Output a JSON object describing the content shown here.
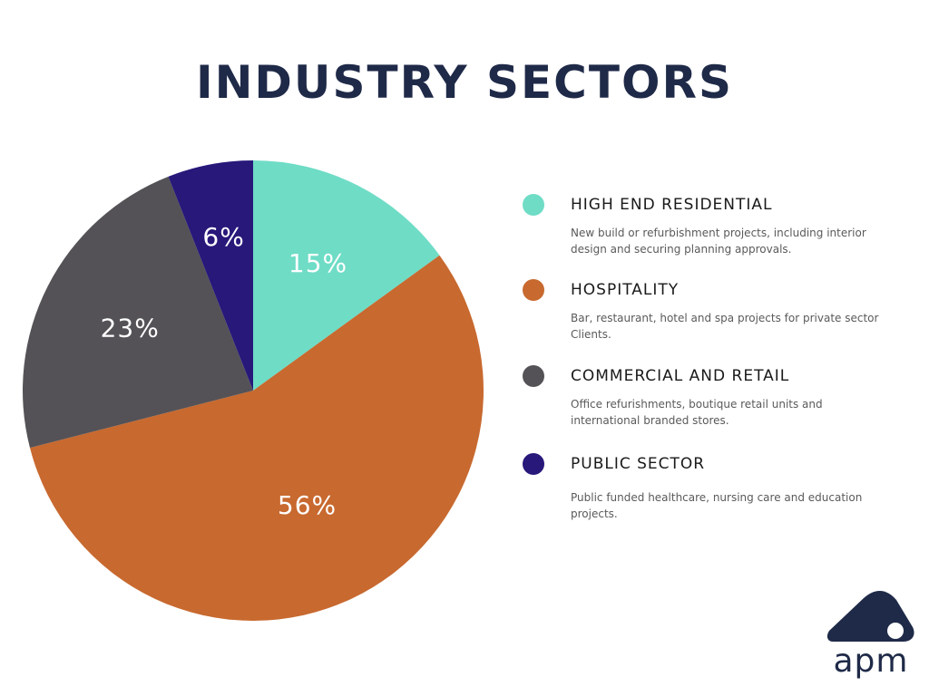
{
  "title": "INDUSTRY SECTORS",
  "chart_data": {
    "type": "pie",
    "title": "INDUSTRY SECTORS",
    "categories": [
      "HIGH END RESIDENTIAL",
      "HOSPITALITY",
      "COMMERCIAL AND RETAIL",
      "PUBLIC SECTOR"
    ],
    "values": [
      15,
      56,
      23,
      6
    ],
    "labels": [
      "15%",
      "56%",
      "23%",
      "6%"
    ],
    "colors": [
      "#6fdcc6",
      "#c8692f",
      "#545256",
      "#27187a"
    ],
    "legend_placement": "right"
  },
  "legend": [
    {
      "name": "HIGH END RESIDENTIAL",
      "desc": "New build or refurbishment projects, including interior design and securing planning approvals.",
      "color": "#6fdcc6"
    },
    {
      "name": "HOSPITALITY",
      "desc": "Bar, restaurant, hotel and spa projects for private sector Clients.",
      "color": "#c8692f"
    },
    {
      "name": "COMMERCIAL AND RETAIL",
      "desc": "Office refurishments, boutique retail units and international branded stores.",
      "color": "#545256"
    },
    {
      "name": "PUBLIC SECTOR",
      "desc": "Public funded healthcare, nursing care and education projects.",
      "color": "#27187a"
    }
  ],
  "logo": {
    "text": "apm",
    "color": "#1f2a48"
  }
}
